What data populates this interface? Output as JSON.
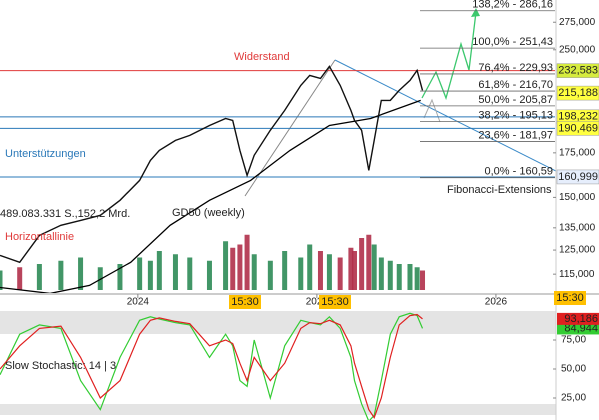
{
  "chart_data": {
    "type": "line",
    "log_scale": true,
    "ylim": [
      107000,
      297000
    ],
    "yticks": [
      {
        "value": 275000,
        "label": "275,000"
      },
      {
        "value": 250000,
        "label": "250,000"
      },
      {
        "value": 175000,
        "label": "175,000"
      },
      {
        "value": 150000,
        "label": "150,000"
      },
      {
        "value": 135000,
        "label": "135,000"
      },
      {
        "value": 125000,
        "label": "125,000"
      },
      {
        "value": 115000,
        "label": "115,000"
      }
    ],
    "xlim": [
      2023.23,
      2026.33
    ],
    "xticks": [
      2024,
      2025,
      2026
    ],
    "x": [
      2023.23,
      2023.34,
      2023.45,
      2023.57,
      2023.68,
      2023.79,
      2023.9,
      2024.01,
      2024.07,
      2024.12,
      2024.21,
      2024.29,
      2024.4,
      2024.49,
      2024.53,
      2024.57,
      2024.61,
      2024.65,
      2024.74,
      2024.82,
      2024.91,
      2024.96,
      2025.02,
      2025.07,
      2025.13,
      2025.19,
      2025.21,
      2025.25,
      2025.29,
      2025.32,
      2025.36,
      2025.41,
      2025.46,
      2025.52,
      2025.56,
      2025.59
    ],
    "values": [
      122700,
      119800,
      131500,
      136200,
      138500,
      141000,
      148500,
      159100,
      170500,
      176500,
      182700,
      185900,
      192400,
      197100,
      195800,
      176500,
      161900,
      173500,
      189200,
      202700,
      221000,
      228800,
      226400,
      236000,
      221000,
      202700,
      195800,
      189200,
      164700,
      182700,
      209800,
      209800,
      217200,
      224900,
      232800,
      217200
    ],
    "color": "#111111",
    "gd50": {
      "name": "GD50 (weekly)",
      "color": "#000000",
      "x": [
        2023.23,
        2023.51,
        2023.73,
        2023.96,
        2024.18,
        2024.4,
        2024.63,
        2024.85,
        2025.07,
        2025.3,
        2025.58
      ],
      "values": [
        109800,
        107600,
        110600,
        119800,
        136200,
        148500,
        159100,
        176500,
        192400,
        197100,
        209800
      ]
    },
    "volume": {
      "vlim": [
        0,
        100
      ],
      "up_color": "#2e8b57",
      "down_color": "#b0304a",
      "values": [
        30,
        35,
        40,
        45,
        50,
        35,
        40,
        50,
        45,
        60,
        55,
        50,
        45,
        75,
        65,
        70,
        85,
        55,
        45,
        60,
        50,
        70,
        60,
        55,
        50,
        65,
        60,
        80,
        85,
        70,
        50,
        45,
        40,
        40,
        35,
        30
      ]
    },
    "resistance": {
      "label": "Widerstand",
      "color": "#e03a3a",
      "values": [
        232583
      ]
    },
    "supports": {
      "label": "Unterstützungen",
      "color": "#2a78b8",
      "values": [
        198232,
        190469,
        160999
      ]
    },
    "fibonacci": {
      "name": "Fibonacci-Extensions",
      "color": "#666666",
      "levels": [
        {
          "value": 286160,
          "label": "138,2% - 286,16"
        },
        {
          "value": 251430,
          "label": "100,0% - 251,43"
        },
        {
          "value": 229930,
          "label": "76,4% - 229,93"
        },
        {
          "value": 216700,
          "label": "61,8% - 216,70"
        },
        {
          "value": 205870,
          "label": "50,0% - 205,87"
        },
        {
          "value": 195130,
          "label": "38,2% - 195,13"
        },
        {
          "value": 181970,
          "label": "23,6% - 181,97"
        },
        {
          "value": 160590,
          "label": "0,0% - 160,59"
        }
      ]
    },
    "price_labels": [
      {
        "value": 232583,
        "label": "232,583",
        "color": "#d6ec3e"
      },
      {
        "value": 215188,
        "label": "215,188",
        "color": "#ffff40"
      },
      {
        "value": 198232,
        "label": "198,232",
        "color": "#ffff40"
      },
      {
        "value": 190469,
        "label": "190,469",
        "color": "#ffff40"
      },
      {
        "value": 160999,
        "label": "160,999",
        "color": "#e6eefc"
      }
    ],
    "info": "489.083.331 S.,152,2 Mrd.",
    "horizontal_line": "Horizontallinie",
    "time_label": "15:30",
    "stochastic": {
      "name": "Slow Stochastic: 14 | 3",
      "ylim": [
        5,
        103
      ],
      "yticks": [
        {
          "value": 75,
          "label": "75,00"
        },
        {
          "value": 50,
          "label": "50,00"
        },
        {
          "value": 25,
          "label": "25,00"
        }
      ],
      "series": [
        {
          "color": "#33cc33",
          "last_label": "84,944",
          "values": [
            45,
            80,
            88,
            85,
            40,
            15,
            60,
            92,
            95,
            93,
            90,
            88,
            60,
            80,
            70,
            40,
            35,
            75,
            25,
            70,
            92,
            90,
            88,
            95,
            85,
            60,
            40,
            20,
            5,
            10,
            40,
            80,
            95,
            98,
            96,
            84.944
          ]
        },
        {
          "color": "#e02020",
          "last_label": "93,186",
          "values": [
            50,
            70,
            85,
            87,
            60,
            25,
            40,
            80,
            92,
            94,
            91,
            89,
            70,
            75,
            72,
            55,
            40,
            60,
            40,
            55,
            85,
            90,
            89,
            92,
            88,
            70,
            55,
            35,
            15,
            8,
            25,
            60,
            88,
            96,
            97,
            93.186
          ]
        }
      ]
    }
  }
}
